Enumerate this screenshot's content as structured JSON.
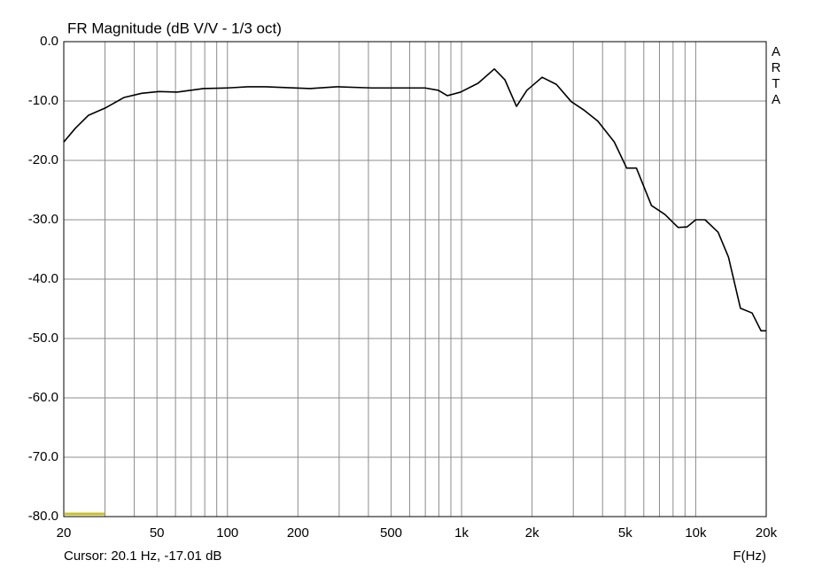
{
  "chart_data": {
    "type": "line",
    "title": "FR Magnitude (dB V/V - 1/3 oct)",
    "brand": "ARTA",
    "x_label": "F(Hz)",
    "cursor_label": "Cursor: 20.1 Hz, -17.01 dB",
    "log_x": true,
    "grid": true,
    "color": "#000000",
    "x": [
      20,
      22.4,
      25.5,
      30,
      36.2,
      43,
      51,
      61,
      79,
      100,
      122,
      146,
      225,
      293,
      414,
      586,
      698,
      796,
      869,
      990,
      1177,
      1380,
      1530,
      1716,
      1900,
      2208,
      2540,
      2940,
      3350,
      3820,
      4490,
      5070,
      5580,
      6470,
      7380,
      8410,
      9190,
      10000,
      10960,
      12460,
      13800,
      15520,
      17400,
      19000,
      20000
    ],
    "values": [
      -16.9,
      -14.6,
      -12.4,
      -11.2,
      -9.4,
      -8.7,
      -8.4,
      -8.5,
      -7.9,
      -7.8,
      -7.6,
      -7.6,
      -7.9,
      -7.6,
      -7.8,
      -7.8,
      -7.8,
      -8.2,
      -9.1,
      -8.5,
      -7.0,
      -4.6,
      -6.4,
      -10.9,
      -8.2,
      -6.0,
      -7.2,
      -10.1,
      -11.6,
      -13.4,
      -16.9,
      -21.3,
      -21.3,
      -27.6,
      -29.1,
      -31.3,
      -31.2,
      -30.0,
      -30.0,
      -32.1,
      -36.3,
      -44.9,
      -45.7,
      -48.7,
      -48.7
    ],
    "xlim": [
      20,
      20000
    ],
    "ylim": [
      -80,
      0
    ],
    "xticks": [
      20,
      50,
      100,
      200,
      500,
      {
        "value": 1000,
        "label": "1k"
      },
      {
        "value": 2000,
        "label": "2k"
      },
      {
        "value": 5000,
        "label": "5k"
      },
      {
        "value": 10000,
        "label": "10k"
      },
      {
        "value": 20000,
        "label": "20k"
      }
    ],
    "xminor_grid": [
      30,
      40,
      60,
      70,
      80,
      90,
      300,
      400,
      600,
      700,
      800,
      900,
      3000,
      4000,
      6000,
      7000,
      8000,
      9000
    ],
    "yticks": [
      {
        "value": 0,
        "label": "0.0"
      },
      {
        "value": -10,
        "label": "-10.0"
      },
      {
        "value": -20,
        "label": "-20.0"
      },
      {
        "value": -30,
        "label": "-30.0"
      },
      {
        "value": -40,
        "label": "-40.0"
      },
      {
        "value": -50,
        "label": "-50.0"
      },
      {
        "value": -60,
        "label": "-60.0"
      },
      {
        "value": -70,
        "label": "-70.0"
      },
      {
        "value": -80,
        "label": "-80.0"
      }
    ]
  }
}
